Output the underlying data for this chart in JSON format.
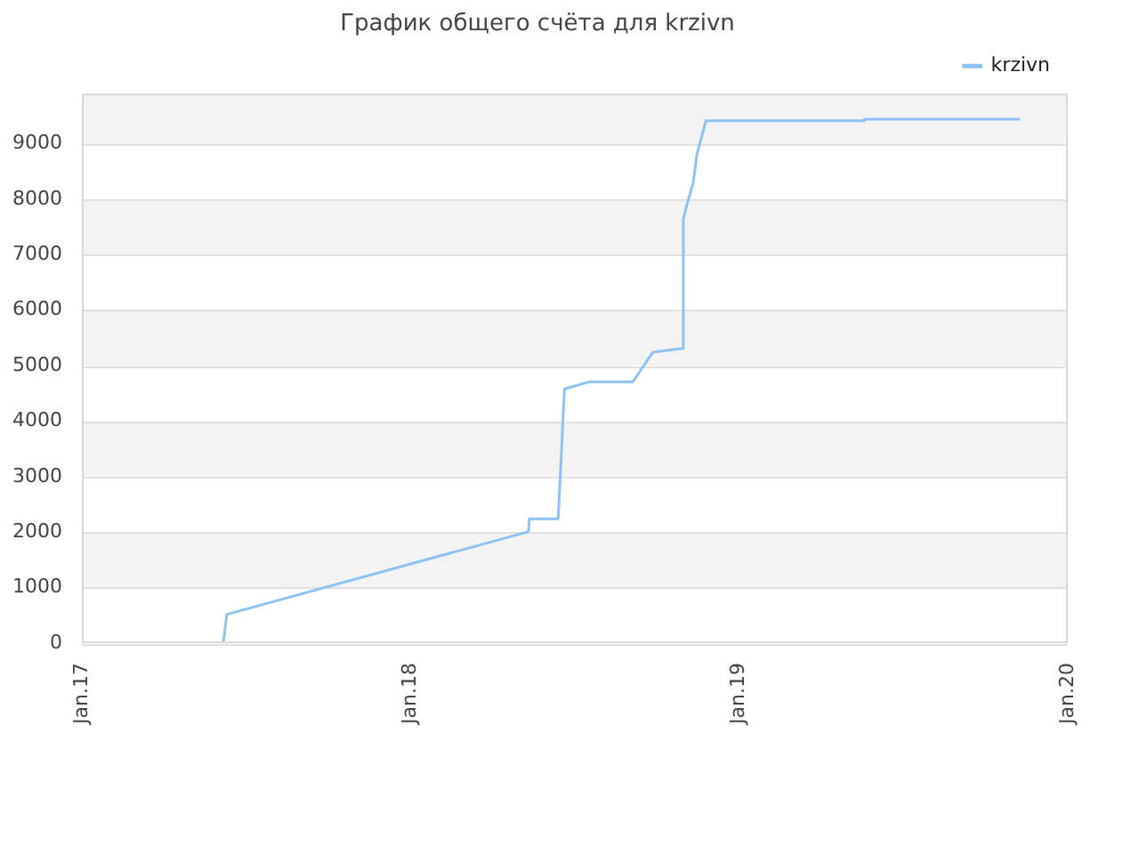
{
  "chart_data": {
    "type": "line",
    "title": "График общего счёта для krzivn",
    "x": [
      "2017-06-07",
      "2017-06-11",
      "2018-05-12",
      "2018-05-13",
      "2018-06-14",
      "2018-06-21",
      "2018-07-19",
      "2018-09-05",
      "2018-09-27",
      "2018-10-30",
      "2018-10-31",
      "2018-11-04",
      "2018-11-11",
      "2018-11-15",
      "2018-11-25",
      "2019-05-19",
      "2019-05-20",
      "2019-11-09"
    ],
    "series": [
      {
        "name": "krzivn",
        "color": "#8ec2f2",
        "values": [
          0,
          520,
          2010,
          2240,
          2240,
          4580,
          4710,
          4710,
          5240,
          5310,
          7640,
          7900,
          8300,
          8800,
          9410,
          9410,
          9440,
          9440
        ]
      }
    ],
    "xlim": [
      "2017-01",
      "2020-01"
    ],
    "xticks": [
      {
        "value": "2017-01",
        "label": "Jan.17"
      },
      {
        "value": "2018-01",
        "label": "Jan.18"
      },
      {
        "value": "2019-01",
        "label": "Jan.19"
      },
      {
        "value": "2020-01",
        "label": "Jan.20"
      }
    ],
    "ylim": [
      0,
      9900
    ],
    "yticks": [
      0,
      1000,
      2000,
      3000,
      4000,
      5000,
      6000,
      7000,
      8000,
      9000
    ],
    "grid": "y",
    "legend": "top right",
    "marker": "none",
    "line_style": "solid"
  }
}
